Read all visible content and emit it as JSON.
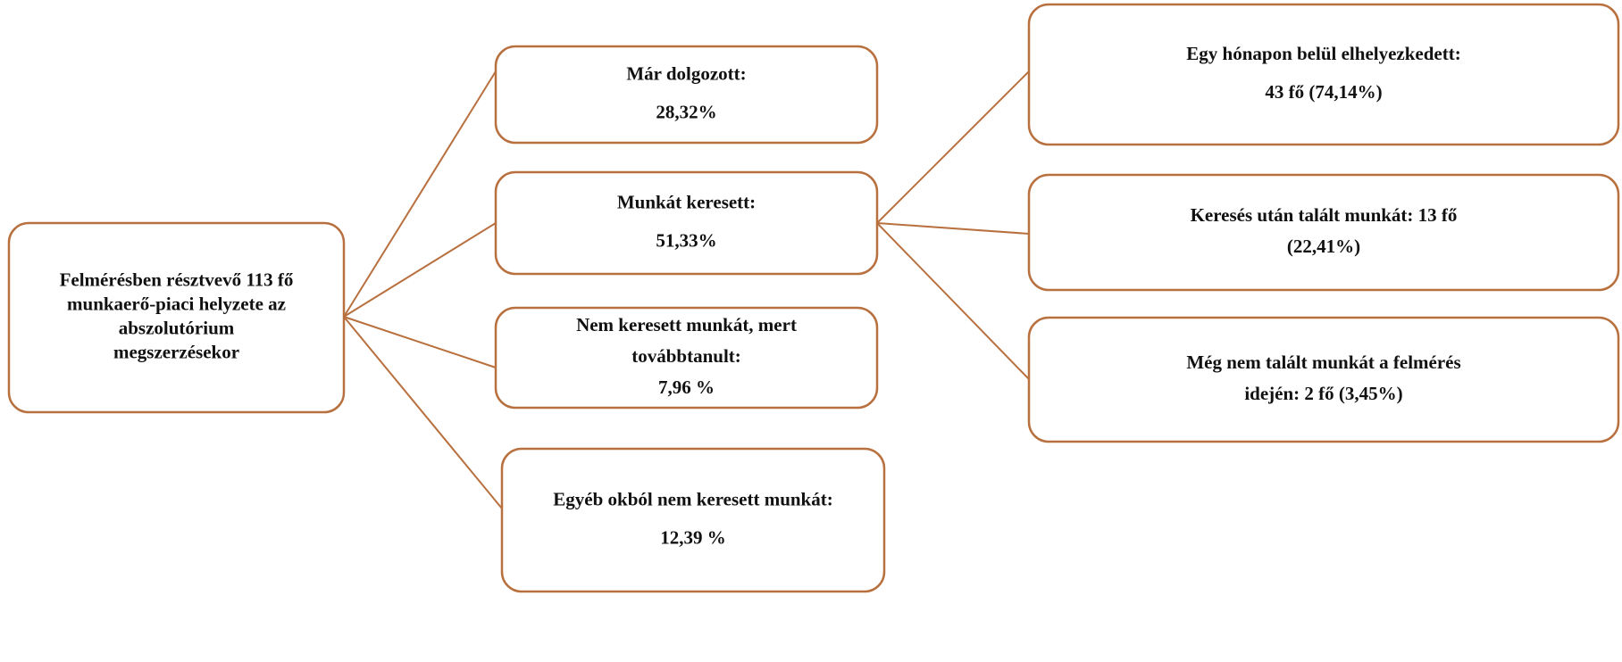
{
  "nodes": [
    {
      "lines": [
        "Felmérésben résztvevő 113 fő",
        "munkaerő-piaci helyzete az",
        "abszolutórium",
        "megszerzésekor"
      ]
    },
    {
      "lines": [
        "Már dolgozott:",
        "28,32%"
      ]
    },
    {
      "lines": [
        "Munkát keresett:",
        "51,33%"
      ]
    },
    {
      "lines": [
        "Nem keresett munkát, mert",
        "továbbtanult:",
        "7,96 %"
      ]
    },
    {
      "lines": [
        "Egyéb okból nem keresett munkát:",
        "12,39 %"
      ]
    },
    {
      "lines": [
        "Egy hónapon belül elhelyezkedett:",
        "43 fő (74,14%)"
      ]
    },
    {
      "lines": [
        "Keresés után talált munkát: 13 fő",
        "(22,41%)"
      ]
    },
    {
      "lines": [
        "Még nem talált munkát a felmérés",
        "idején: 2 fő (3,45%)"
      ]
    }
  ]
}
